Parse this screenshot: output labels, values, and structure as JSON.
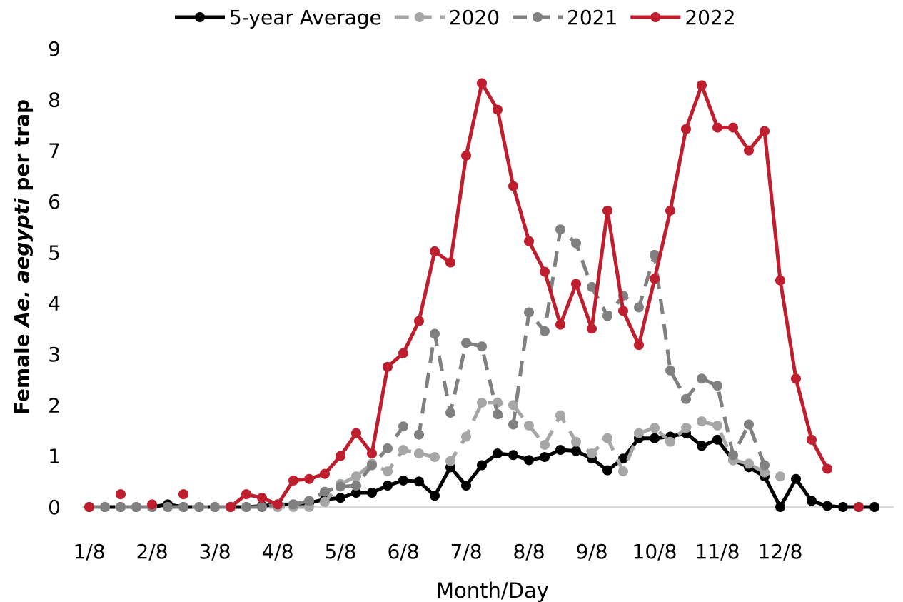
{
  "chart_data": {
    "type": "line",
    "xlabel": "Month/Day",
    "ylabel_parts": [
      "Female ",
      "Ae. aegypti",
      " per trap"
    ],
    "ylim": [
      0,
      9
    ],
    "yticks": [
      0,
      1,
      2,
      3,
      4,
      5,
      6,
      7,
      8,
      9
    ],
    "xtick_labels": [
      "1/8",
      "2/8",
      "3/8",
      "4/8",
      "5/8",
      "6/8",
      "7/8",
      "8/8",
      "9/8",
      "10/8",
      "11/8",
      "12/8"
    ],
    "xtick_weeks": [
      1,
      5,
      9,
      13,
      17,
      21,
      25,
      29,
      33,
      37,
      41,
      45
    ],
    "weeks": [
      1,
      2,
      3,
      4,
      5,
      6,
      7,
      8,
      9,
      10,
      11,
      12,
      13,
      14,
      15,
      16,
      17,
      18,
      19,
      20,
      21,
      22,
      23,
      24,
      25,
      26,
      27,
      28,
      29,
      30,
      31,
      32,
      33,
      34,
      35,
      36,
      37,
      38,
      39,
      40,
      41,
      42,
      43,
      44,
      45,
      46,
      47,
      48,
      49,
      50,
      51
    ],
    "grid": false,
    "legend_position": "top",
    "series": [
      {
        "name": "5-year Average",
        "color": "#000000",
        "style": "solid",
        "values": [
          0,
          0,
          0,
          0,
          0,
          0.05,
          0,
          0,
          0,
          0,
          0,
          0.02,
          0.05,
          0.05,
          0.08,
          0.15,
          0.18,
          0.28,
          0.28,
          0.42,
          0.52,
          0.5,
          0.22,
          0.78,
          0.42,
          0.82,
          1.05,
          1.02,
          0.92,
          0.98,
          1.12,
          1.1,
          0.95,
          0.72,
          0.95,
          1.35,
          1.35,
          1.38,
          1.45,
          1.2,
          1.32,
          0.92,
          0.78,
          0.6,
          0,
          0.55,
          0.12,
          0.02,
          0,
          0,
          0
        ]
      },
      {
        "name": "2020",
        "color": "#a6a6a6",
        "style": "dashed",
        "values": [
          0,
          0,
          0,
          0,
          0,
          0,
          0,
          0,
          0,
          0,
          0,
          0,
          0,
          0,
          0,
          0.1,
          0.45,
          0.6,
          0.85,
          0.7,
          1.12,
          1.05,
          0.98,
          0.9,
          1.38,
          2.05,
          2.05,
          2.0,
          1.6,
          1.22,
          1.8,
          1.28,
          1.05,
          1.35,
          0.7,
          1.45,
          1.55,
          1.28,
          1.55,
          1.68,
          1.6,
          0.92,
          0.85,
          0.68,
          0.6,
          null,
          null,
          null,
          null,
          null,
          null
        ]
      },
      {
        "name": "2021",
        "color": "#808080",
        "style": "dashed",
        "values": [
          0,
          0,
          0,
          0,
          0,
          0,
          0,
          0,
          0,
          0,
          0,
          0,
          0.05,
          0.05,
          0.12,
          0.3,
          0.4,
          0.42,
          0.82,
          1.15,
          1.58,
          1.42,
          3.4,
          1.85,
          3.22,
          3.15,
          1.82,
          1.62,
          3.82,
          3.45,
          5.45,
          5.18,
          4.32,
          3.75,
          4.15,
          3.92,
          4.95,
          2.68,
          2.12,
          2.52,
          2.38,
          1.02,
          1.62,
          0.82,
          null,
          null,
          null,
          null,
          null,
          null,
          null
        ]
      },
      {
        "name": "2022",
        "color": "#be1e2d",
        "style": "solid",
        "values": [
          0,
          null,
          0.25,
          null,
          0.05,
          null,
          0.25,
          null,
          null,
          0,
          0.25,
          0.18,
          0.05,
          0.52,
          0.55,
          0.65,
          1.0,
          1.45,
          1.05,
          2.75,
          3.02,
          3.65,
          5.02,
          4.8,
          6.9,
          8.32,
          7.8,
          6.3,
          5.22,
          4.62,
          3.58,
          4.38,
          3.5,
          5.82,
          3.85,
          3.18,
          4.48,
          5.82,
          7.42,
          8.28,
          7.45,
          7.45,
          7.0,
          7.38,
          4.45,
          2.52,
          1.32,
          0.75,
          null,
          0,
          null
        ]
      }
    ]
  }
}
